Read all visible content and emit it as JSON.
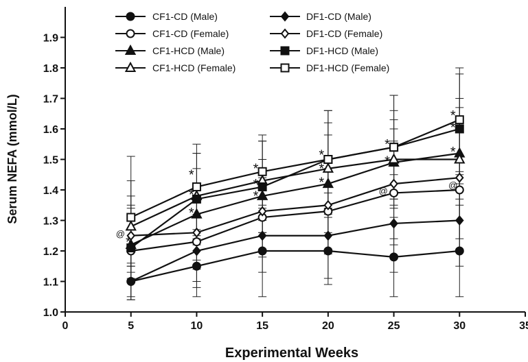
{
  "chart_data": {
    "type": "line",
    "xlabel": "Experimental Weeks",
    "ylabel": "Serum NEFA (mmol/L)",
    "xlim": [
      0,
      35
    ],
    "ylim": [
      1.0,
      2.0
    ],
    "x_ticks": [
      0,
      5,
      10,
      15,
      20,
      25,
      30,
      35
    ],
    "y_ticks": [
      1.0,
      1.1,
      1.2,
      1.3,
      1.4,
      1.5,
      1.6,
      1.7,
      1.8,
      1.9
    ],
    "x_tick_labels": [
      "0",
      "5",
      "10",
      "15",
      "20",
      "25",
      "30",
      "35"
    ],
    "y_tick_labels": [
      "1.0",
      "1.1",
      "1.2",
      "1.3",
      "1.4",
      "1.5",
      "1.6",
      "1.7",
      "1.8",
      "1.9"
    ],
    "grid": false,
    "legend_position": "top",
    "x": [
      5,
      10,
      15,
      20,
      25,
      30
    ],
    "series": [
      {
        "name": "CF1-CD (Male)",
        "marker": "circle-filled",
        "values": [
          1.1,
          1.15,
          1.2,
          1.2,
          1.18,
          1.2
        ],
        "err": [
          0.05,
          0.1,
          0.15,
          0.11,
          0.13,
          0.15
        ]
      },
      {
        "name": "CF1-CD (Female)",
        "marker": "circle-open",
        "values": [
          1.2,
          1.23,
          1.31,
          1.33,
          1.39,
          1.4
        ],
        "err": [
          0.1,
          0.13,
          0.13,
          0.14,
          0.17,
          0.2
        ]
      },
      {
        "name": "CF1-HCD (Male)",
        "marker": "triangle-filled",
        "values": [
          1.22,
          1.32,
          1.38,
          1.42,
          1.49,
          1.52
        ],
        "err": [
          0.12,
          0.15,
          0.12,
          0.16,
          0.14,
          0.15
        ]
      },
      {
        "name": "CF1-HCD (Female)",
        "marker": "triangle-open",
        "values": [
          1.28,
          1.38,
          1.43,
          1.47,
          1.5,
          1.5
        ],
        "err": [
          0.15,
          0.14,
          0.13,
          0.15,
          0.16,
          0.2
        ]
      },
      {
        "name": "DF1-CD (Male)",
        "marker": "diamond-filled",
        "values": [
          1.1,
          1.2,
          1.25,
          1.25,
          1.29,
          1.3
        ],
        "err": [
          0.06,
          0.12,
          0.12,
          0.14,
          0.16,
          0.15
        ]
      },
      {
        "name": "DF1-CD (Female)",
        "marker": "diamond-open",
        "values": [
          1.25,
          1.26,
          1.33,
          1.35,
          1.42,
          1.44
        ],
        "err": [
          0.1,
          0.12,
          0.13,
          0.15,
          0.18,
          0.2
        ]
      },
      {
        "name": "DF1-HCD (Male)",
        "marker": "square-filled",
        "values": [
          1.21,
          1.37,
          1.41,
          1.5,
          1.54,
          1.6
        ],
        "err": [
          0.17,
          0.15,
          0.15,
          0.16,
          0.17,
          0.18
        ]
      },
      {
        "name": "DF1-HCD (Female)",
        "marker": "square-open",
        "values": [
          1.31,
          1.41,
          1.46,
          1.5,
          1.54,
          1.63
        ],
        "err": [
          0.2,
          0.14,
          0.12,
          0.16,
          0.17,
          0.17
        ]
      }
    ],
    "annotations": [
      {
        "text": "*",
        "x": 4.8,
        "y": 1.235
      },
      {
        "text": "@",
        "x": 4.2,
        "y": 1.255
      },
      {
        "text": "*",
        "x": 9.6,
        "y": 1.455
      },
      {
        "text": "*",
        "x": 9.6,
        "y": 1.39
      },
      {
        "text": "*",
        "x": 9.6,
        "y": 1.33
      },
      {
        "text": "*",
        "x": 14.5,
        "y": 1.475
      },
      {
        "text": "*",
        "x": 14.5,
        "y": 1.425
      },
      {
        "text": "*",
        "x": 14.5,
        "y": 1.385
      },
      {
        "text": "*",
        "x": 19.5,
        "y": 1.52
      },
      {
        "text": "*",
        "x": 19.5,
        "y": 1.475
      },
      {
        "text": "*",
        "x": 19.5,
        "y": 1.43
      },
      {
        "text": "*",
        "x": 24.5,
        "y": 1.555
      },
      {
        "text": "*",
        "x": 24.5,
        "y": 1.5
      },
      {
        "text": "@",
        "x": 24.2,
        "y": 1.395
      },
      {
        "text": "*",
        "x": 29.5,
        "y": 1.65
      },
      {
        "text": "*",
        "x": 29.5,
        "y": 1.61
      },
      {
        "text": "*",
        "x": 29.5,
        "y": 1.53
      },
      {
        "text": "@",
        "x": 29.5,
        "y": 1.415
      }
    ]
  }
}
